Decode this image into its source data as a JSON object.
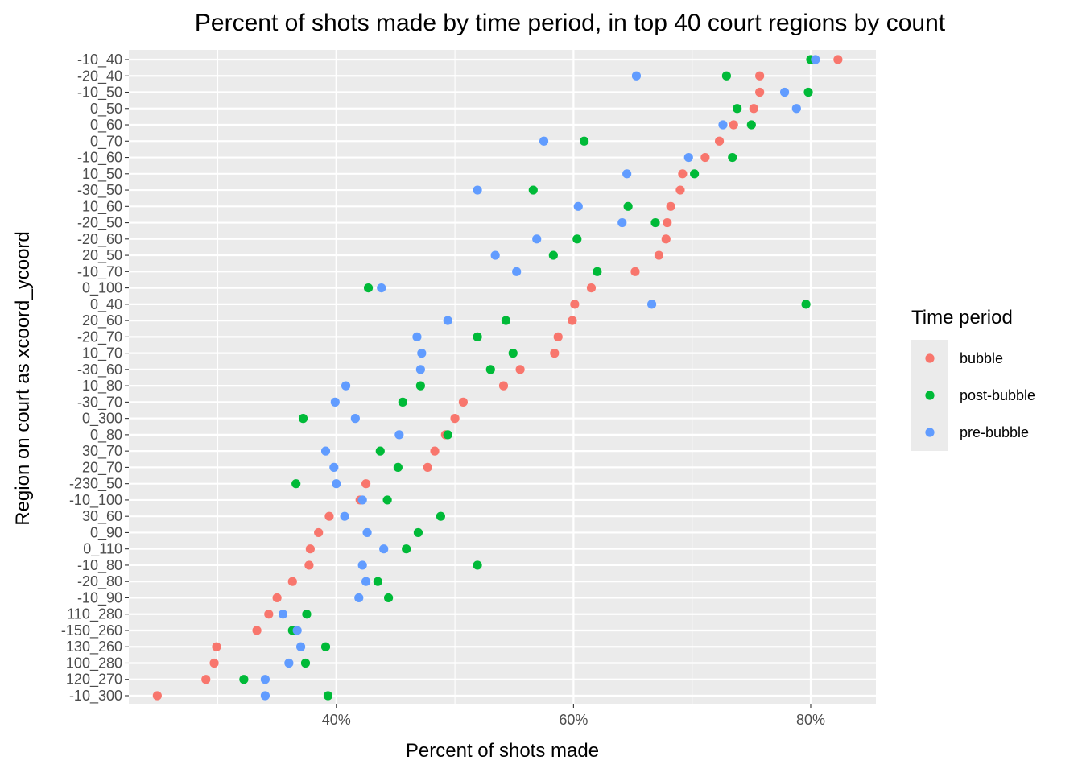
{
  "chart_data": {
    "type": "scatter",
    "title": "Percent of shots made by time period, in top 40 court regions by count",
    "xlabel": "Percent of shots made",
    "ylabel": "Region on court as xcoord_ycoord",
    "xlim": [
      0.225,
      0.855
    ],
    "x_ticks": [
      0.4,
      0.6,
      0.8
    ],
    "x_tick_labels": [
      "40%",
      "60%",
      "80%"
    ],
    "grid": true,
    "legend": {
      "title": "Time period",
      "position": "right"
    },
    "categories": [
      "-10_40",
      "-20_40",
      "-10_50",
      "0_50",
      "0_60",
      "0_70",
      "-10_60",
      "10_50",
      "-30_50",
      "10_60",
      "-20_50",
      "-20_60",
      "20_50",
      "-10_70",
      "0_100",
      "0_40",
      "20_60",
      "-20_70",
      "10_70",
      "-30_60",
      "10_80",
      "-30_70",
      "0_300",
      "0_80",
      "30_70",
      "20_70",
      "-230_50",
      "-10_100",
      "30_60",
      "0_90",
      "0_110",
      "-10_80",
      "-20_80",
      "-10_90",
      "110_280",
      "-150_260",
      "130_260",
      "100_280",
      "120_270",
      "-10_300"
    ],
    "series": [
      {
        "name": "bubble",
        "color": "#F8766D",
        "values": [
          0.823,
          0.757,
          0.757,
          0.752,
          0.735,
          0.723,
          0.711,
          0.692,
          0.69,
          0.682,
          0.679,
          0.678,
          0.672,
          0.652,
          0.615,
          0.601,
          0.599,
          0.587,
          0.584,
          0.555,
          0.541,
          0.507,
          0.5,
          0.492,
          0.483,
          0.477,
          0.425,
          0.42,
          0.394,
          0.385,
          0.378,
          0.377,
          0.363,
          0.35,
          0.343,
          0.333,
          0.299,
          0.297,
          0.29,
          0.249
        ]
      },
      {
        "name": "post-bubble",
        "color": "#00BA38",
        "values": [
          0.8,
          0.729,
          0.798,
          0.738,
          0.75,
          0.609,
          0.734,
          0.702,
          0.566,
          0.646,
          0.669,
          0.603,
          0.583,
          0.62,
          0.427,
          0.796,
          0.543,
          0.519,
          0.549,
          0.53,
          0.471,
          0.456,
          0.372,
          0.494,
          0.437,
          0.452,
          0.366,
          0.443,
          0.488,
          0.469,
          0.459,
          0.519,
          0.435,
          0.444,
          0.375,
          0.363,
          0.391,
          0.374,
          0.322,
          0.393
        ]
      },
      {
        "name": "pre-bubble",
        "color": "#619CFF",
        "values": [
          0.804,
          0.653,
          0.778,
          0.788,
          0.726,
          0.575,
          0.697,
          0.645,
          0.519,
          0.604,
          0.641,
          0.569,
          0.534,
          0.552,
          0.438,
          0.666,
          0.494,
          0.468,
          0.472,
          0.471,
          0.408,
          0.399,
          0.416,
          0.453,
          0.391,
          0.398,
          0.4,
          0.422,
          0.407,
          0.426,
          0.44,
          0.422,
          0.425,
          0.419,
          0.355,
          0.367,
          0.37,
          0.36,
          0.34,
          0.34
        ]
      }
    ]
  }
}
